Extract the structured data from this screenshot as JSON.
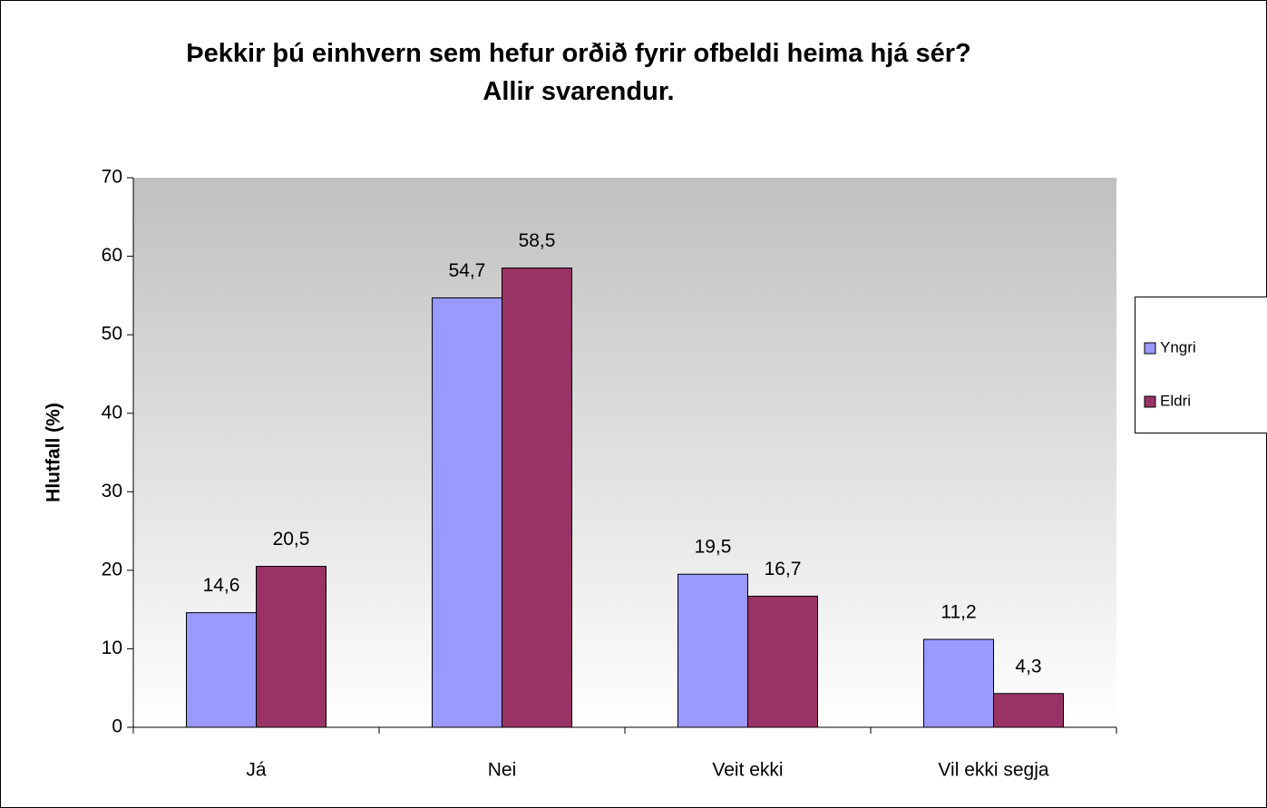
{
  "chart_data": {
    "type": "bar",
    "title": "Þekkir þú einhvern sem hefur orðið fyrir ofbeldi heima hjá sér? Allir svarendur.",
    "y_label": "Hlutfall (%)",
    "categories": [
      "Já",
      "Nei",
      "Veit ekki",
      "Vil ekki segja"
    ],
    "series": [
      {
        "name": "Yngri",
        "color": "#9999ff",
        "values": [
          14.6,
          54.7,
          19.5,
          11.2
        ],
        "value_labels": [
          "14,6",
          "54,7",
          "19,5",
          "11,2"
        ]
      },
      {
        "name": "Eldri",
        "color": "#993366",
        "values": [
          20.5,
          58.5,
          16.7,
          4.3
        ],
        "value_labels": [
          "20,5",
          "58,5",
          "16,7",
          "4,3"
        ]
      }
    ],
    "ylim": [
      0,
      70
    ],
    "yticks": [
      0,
      10,
      20,
      30,
      40,
      50,
      60,
      70
    ],
    "grid": false,
    "legend": "right"
  }
}
